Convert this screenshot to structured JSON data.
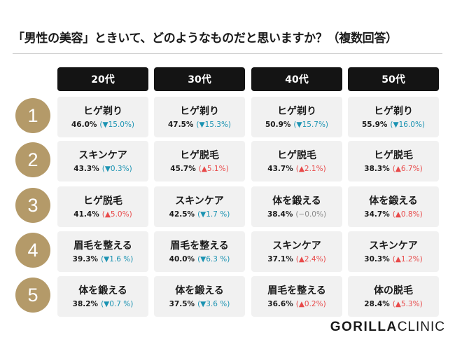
{
  "title": "「男性の美容」ときいて、どのようなものだと思いますか？（複数回答）",
  "headers": [
    "20代",
    "30代",
    "40代",
    "50代"
  ],
  "ranks": [
    "1",
    "2",
    "3",
    "4",
    "5"
  ],
  "rows": [
    [
      {
        "name": "ヒゲ剃り",
        "pct": "46.0%",
        "change": "(▼15.0%)",
        "dir": "down"
      },
      {
        "name": "ヒゲ剃り",
        "pct": "47.5%",
        "change": "(▼15.3%)",
        "dir": "down"
      },
      {
        "name": "ヒゲ剃り",
        "pct": "50.9%",
        "change": "(▼15.7%)",
        "dir": "down"
      },
      {
        "name": "ヒゲ剃り",
        "pct": "55.9%",
        "change": "(▼16.0%)",
        "dir": "down"
      }
    ],
    [
      {
        "name": "スキンケア",
        "pct": "43.3%",
        "change": "(▼0.3%)",
        "dir": "down"
      },
      {
        "name": "ヒゲ脱毛",
        "pct": "45.7%",
        "change": "(▲5.1%)",
        "dir": "up"
      },
      {
        "name": "ヒゲ脱毛",
        "pct": "43.7%",
        "change": "(▲2.1%)",
        "dir": "up"
      },
      {
        "name": "ヒゲ脱毛",
        "pct": "38.3%",
        "change": "(▲6.7%)",
        "dir": "up"
      }
    ],
    [
      {
        "name": "ヒゲ脱毛",
        "pct": "41.4%",
        "change": "(▲5.0%)",
        "dir": "up"
      },
      {
        "name": "スキンケア",
        "pct": "42.5%",
        "change": "(▼1.7 %)",
        "dir": "down"
      },
      {
        "name": "体を鍛える",
        "pct": "38.4%",
        "change": "(−0.0%)",
        "dir": "flat"
      },
      {
        "name": "体を鍛える",
        "pct": "34.7%",
        "change": "(▲0.8%)",
        "dir": "up"
      }
    ],
    [
      {
        "name": "眉毛を整える",
        "pct": "39.3%",
        "change": "(▼1.6 %)",
        "dir": "down"
      },
      {
        "name": "眉毛を整える",
        "pct": "40.0%",
        "change": "(▼6.3 %)",
        "dir": "down"
      },
      {
        "name": "スキンケア",
        "pct": "37.1%",
        "change": "(▲2.4%)",
        "dir": "up"
      },
      {
        "name": "スキンケア",
        "pct": "30.3%",
        "change": "(▲1.2%)",
        "dir": "up"
      }
    ],
    [
      {
        "name": "体を鍛える",
        "pct": "38.2%",
        "change": "(▼0.7 %)",
        "dir": "down"
      },
      {
        "name": "体を鍛える",
        "pct": "37.5%",
        "change": "(▼3.6 %)",
        "dir": "down"
      },
      {
        "name": "眉毛を整える",
        "pct": "36.6%",
        "change": "(▲0.2%)",
        "dir": "up"
      },
      {
        "name": "体の脱毛",
        "pct": "28.4%",
        "change": "(▲5.3%)",
        "dir": "up"
      }
    ]
  ],
  "colors": {
    "rank_badge": "#b49a69",
    "header_bg": "#141414",
    "up": "#e84a4a",
    "down": "#1b93b2",
    "flat": "#8a8a8a",
    "cell_bg": "#f1f1f1"
  },
  "logo": {
    "part1": "GORILLA",
    "part2": "CLINIC"
  }
}
